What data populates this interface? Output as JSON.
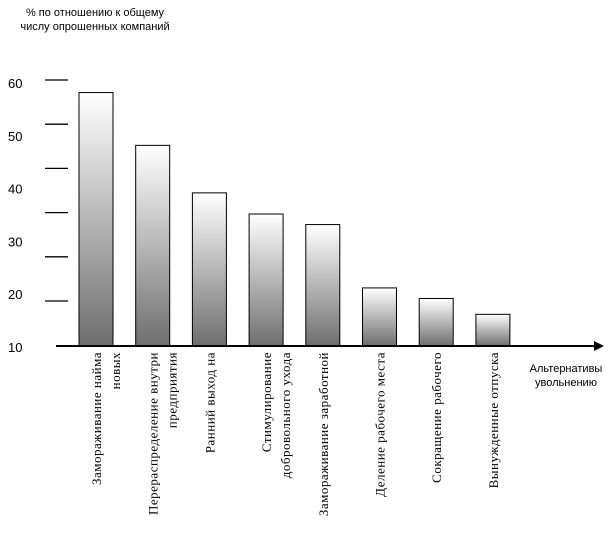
{
  "chart_data": {
    "type": "bar",
    "title": "",
    "ylabel": "% по отношению к общему числу опрошенных компаний",
    "xlabel": "Альтернативы увольнению",
    "ylim": [
      10,
      60
    ],
    "yticks": [
      "60",
      "50",
      "40",
      "30",
      "20",
      "10"
    ],
    "categories": [
      [
        "Замораживание найма",
        "новых"
      ],
      [
        "Перераспределение внутри",
        "предприятия"
      ],
      [
        "Ранний выход на"
      ],
      [
        "Стимулирование",
        "добровольного ухода"
      ],
      [
        "Замораживание заработной"
      ],
      [
        "Деление рабочего места"
      ],
      [
        "Сокращение рабочего"
      ],
      [
        "Вынужденные отпуска"
      ]
    ],
    "values": [
      58,
      48,
      39,
      35,
      33,
      21,
      19,
      16
    ],
    "colors": {
      "bar_top": "#ffffff",
      "bar_bottom": "#6e6e6e",
      "axis": "#000000"
    }
  }
}
